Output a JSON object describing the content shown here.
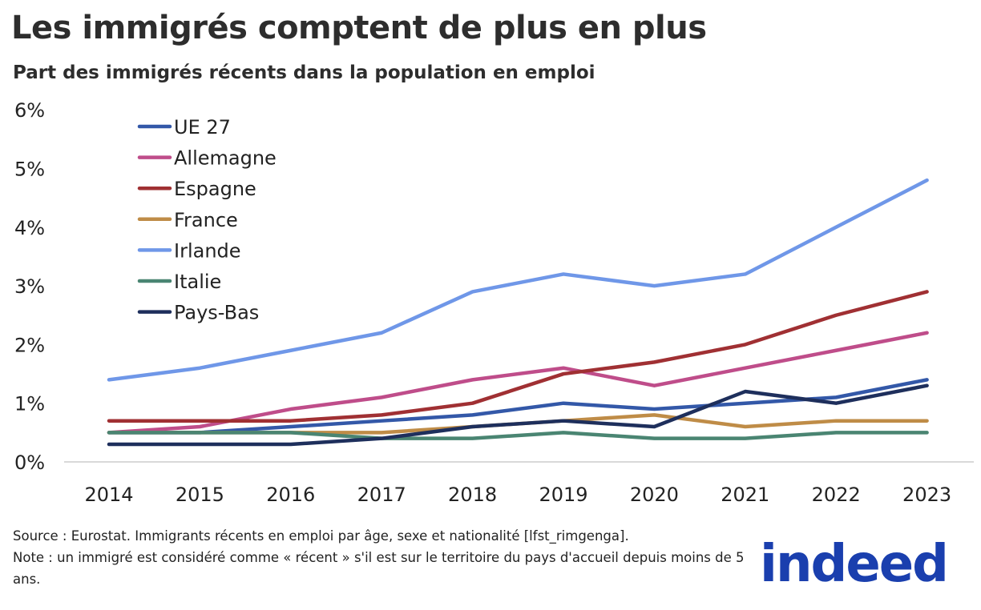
{
  "title": "Les immigrés comptent de plus en plus",
  "subtitle": "Part des immigrés récents dans la population en emploi",
  "chart_data": {
    "type": "line",
    "x": [
      2014,
      2015,
      2016,
      2017,
      2018,
      2019,
      2020,
      2021,
      2022,
      2023
    ],
    "ylim": [
      0,
      6
    ],
    "yticks": [
      "0%",
      "1%",
      "2%",
      "3%",
      "4%",
      "5%",
      "6%"
    ],
    "yunit": "%",
    "grid": false,
    "legend": "top-left",
    "series": [
      {
        "name": "UE 27",
        "color": "#3358a8",
        "values": [
          0.5,
          0.5,
          0.6,
          0.7,
          0.8,
          1.0,
          0.9,
          1.0,
          1.1,
          1.4
        ]
      },
      {
        "name": "Allemagne",
        "color": "#bf4d8a",
        "values": [
          0.5,
          0.6,
          0.9,
          1.1,
          1.4,
          1.6,
          1.3,
          1.6,
          1.9,
          2.2
        ]
      },
      {
        "name": "Espagne",
        "color": "#a03033",
        "values": [
          0.7,
          0.7,
          0.7,
          0.8,
          1.0,
          1.5,
          1.7,
          2.0,
          2.5,
          2.9
        ]
      },
      {
        "name": "France",
        "color": "#bf8c47",
        "values": [
          0.5,
          0.5,
          0.5,
          0.5,
          0.6,
          0.7,
          0.8,
          0.6,
          0.7,
          0.7
        ]
      },
      {
        "name": "Irlande",
        "color": "#6f97e8",
        "values": [
          1.4,
          1.6,
          1.9,
          2.2,
          2.9,
          3.2,
          3.0,
          3.2,
          4.0,
          4.8
        ]
      },
      {
        "name": "Italie",
        "color": "#4a8572",
        "values": [
          0.5,
          0.5,
          0.5,
          0.4,
          0.4,
          0.5,
          0.4,
          0.4,
          0.5,
          0.5
        ]
      },
      {
        "name": "Pays-Bas",
        "color": "#1e2f5c",
        "values": [
          0.3,
          0.3,
          0.3,
          0.4,
          0.6,
          0.7,
          0.6,
          1.2,
          1.0,
          1.3
        ]
      }
    ]
  },
  "notes": {
    "source": "Source : Eurostat. Immigrants récents en emploi par âge, sexe et nationalité [lfst_rimgenga].",
    "note": "Note : un immigré est considéré comme « récent » s'il est sur le territoire du pays d'accueil depuis moins de 5 ans."
  },
  "logo": "indeed"
}
